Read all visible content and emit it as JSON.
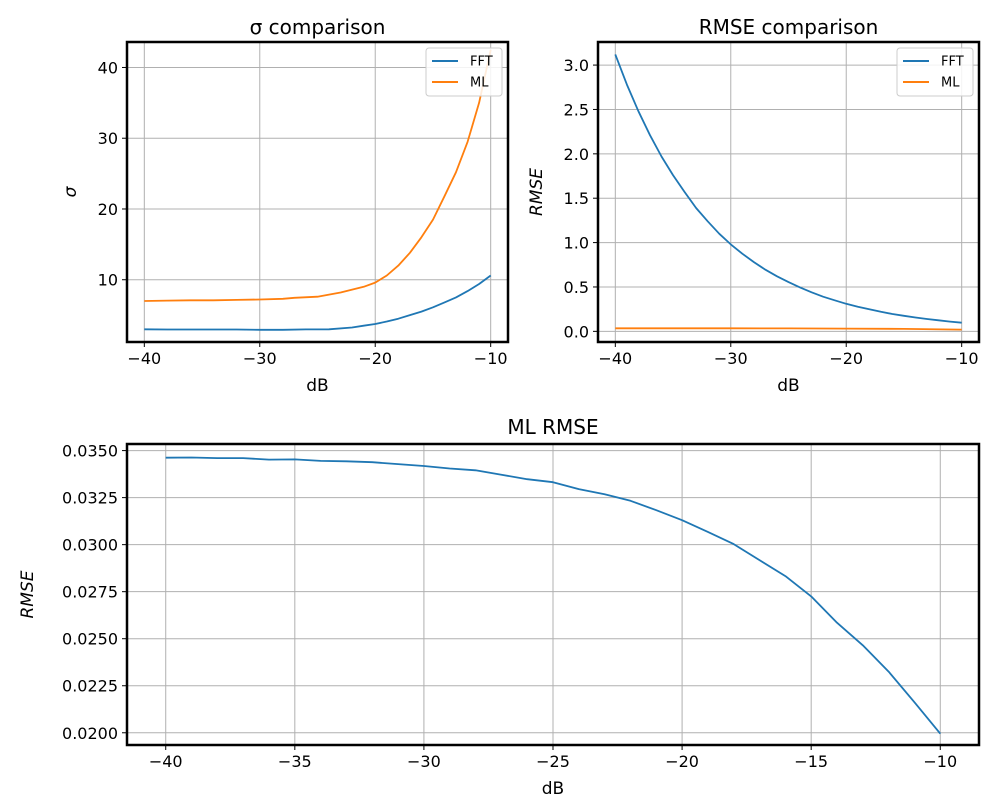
{
  "chart_data": [
    {
      "type": "line",
      "title": "σ comparison",
      "xlabel": "dB",
      "ylabel": "σ",
      "ylabel_italic": true,
      "xlim": [
        -41.5,
        -8.5
      ],
      "ylim": [
        1.2,
        43.6
      ],
      "xticks": [
        -40,
        -30,
        -20,
        -10
      ],
      "yticks": [
        10,
        20,
        30,
        40
      ],
      "grid": true,
      "legend": "upper right",
      "series": [
        {
          "name": "FFT",
          "color": "#1f77b4",
          "x": [
            -40,
            -38,
            -36,
            -34,
            -32,
            -30,
            -28,
            -26,
            -24,
            -22,
            -21,
            -20,
            -19,
            -18,
            -17,
            -16,
            -15,
            -14,
            -13,
            -12,
            -11,
            -10
          ],
          "y": [
            3.0,
            2.97,
            2.96,
            2.96,
            2.96,
            2.93,
            2.93,
            2.98,
            3.0,
            3.25,
            3.5,
            3.75,
            4.1,
            4.5,
            5.0,
            5.5,
            6.1,
            6.8,
            7.5,
            8.4,
            9.4,
            10.6
          ]
        },
        {
          "name": "ML",
          "color": "#ff7f0e",
          "x": [
            -40,
            -38,
            -36,
            -34,
            -32,
            -30,
            -28,
            -27,
            -25,
            -24,
            -23,
            -22,
            -21,
            -20,
            -19,
            -18,
            -17,
            -16,
            -15,
            -14,
            -13,
            -12,
            -11,
            -10
          ],
          "y": [
            7.0,
            7.05,
            7.1,
            7.1,
            7.15,
            7.2,
            7.3,
            7.45,
            7.6,
            7.9,
            8.2,
            8.6,
            9.0,
            9.6,
            10.6,
            12.0,
            13.8,
            16.0,
            18.5,
            21.8,
            25.2,
            29.5,
            35.0,
            42.5
          ]
        }
      ]
    },
    {
      "type": "line",
      "title": "RMSE comparison",
      "xlabel": "dB",
      "ylabel": "RMSE",
      "ylabel_italic": true,
      "xlim": [
        -41.5,
        -8.5
      ],
      "ylim": [
        -0.12,
        3.26
      ],
      "xticks": [
        -40,
        -30,
        -20,
        -10
      ],
      "yticks": [
        0.0,
        0.5,
        1.0,
        1.5,
        2.0,
        2.5,
        3.0
      ],
      "ytick_labels": [
        "0.0",
        "0.5",
        "1.0",
        "1.5",
        "2.0",
        "2.5",
        "3.0"
      ],
      "grid": true,
      "legend": "upper right",
      "series": [
        {
          "name": "FFT",
          "color": "#1f77b4",
          "x": [
            -40,
            -39,
            -38,
            -37,
            -36,
            -35,
            -34,
            -33,
            -32,
            -31,
            -30,
            -29,
            -28,
            -27,
            -26,
            -25,
            -24,
            -23,
            -22,
            -21,
            -20,
            -19,
            -18,
            -17,
            -16,
            -15,
            -14,
            -13,
            -12,
            -11,
            -10
          ],
          "y": [
            3.12,
            2.78,
            2.48,
            2.21,
            1.97,
            1.76,
            1.57,
            1.39,
            1.24,
            1.1,
            0.98,
            0.875,
            0.78,
            0.695,
            0.62,
            0.555,
            0.495,
            0.44,
            0.39,
            0.35,
            0.31,
            0.278,
            0.248,
            0.22,
            0.196,
            0.175,
            0.156,
            0.139,
            0.124,
            0.11,
            0.098
          ]
        },
        {
          "name": "ML",
          "color": "#ff7f0e",
          "x": [
            -40,
            -35,
            -30,
            -25,
            -20,
            -15,
            -10
          ],
          "y": [
            0.0346,
            0.0344,
            0.0341,
            0.0332,
            0.0313,
            0.0272,
            0.0199
          ]
        }
      ]
    },
    {
      "type": "line",
      "title": "ML RMSE",
      "xlabel": "dB",
      "ylabel": "RMSE",
      "ylabel_italic": true,
      "xlim": [
        -41.5,
        -8.5
      ],
      "ylim": [
        0.01935,
        0.03535
      ],
      "xticks": [
        -40,
        -35,
        -30,
        -25,
        -20,
        -15,
        -10
      ],
      "yticks": [
        0.02,
        0.0225,
        0.025,
        0.0275,
        0.03,
        0.0325,
        0.035
      ],
      "ytick_labels": [
        "0.0200",
        "0.0225",
        "0.0250",
        "0.0275",
        "0.0300",
        "0.0325",
        "0.0350"
      ],
      "grid": true,
      "series": [
        {
          "name": "",
          "color": "#1f77b4",
          "x": [
            -40,
            -39,
            -38,
            -37,
            -36,
            -35,
            -34,
            -33,
            -32,
            -31,
            -30,
            -29,
            -28,
            -27,
            -26,
            -25,
            -24,
            -23,
            -22,
            -21,
            -20,
            -19,
            -18,
            -17,
            -16,
            -15,
            -14,
            -13,
            -12,
            -11,
            -10
          ],
          "y": [
            0.03462,
            0.03463,
            0.0346,
            0.0346,
            0.03452,
            0.03453,
            0.03445,
            0.03443,
            0.03438,
            0.03428,
            0.03418,
            0.03405,
            0.03395,
            0.03372,
            0.03348,
            0.03332,
            0.03295,
            0.03268,
            0.03233,
            0.03183,
            0.0313,
            0.03068,
            0.03003,
            0.02918,
            0.02833,
            0.02725,
            0.02585,
            0.02465,
            0.02325,
            0.02162,
            0.01995
          ]
        }
      ]
    }
  ]
}
